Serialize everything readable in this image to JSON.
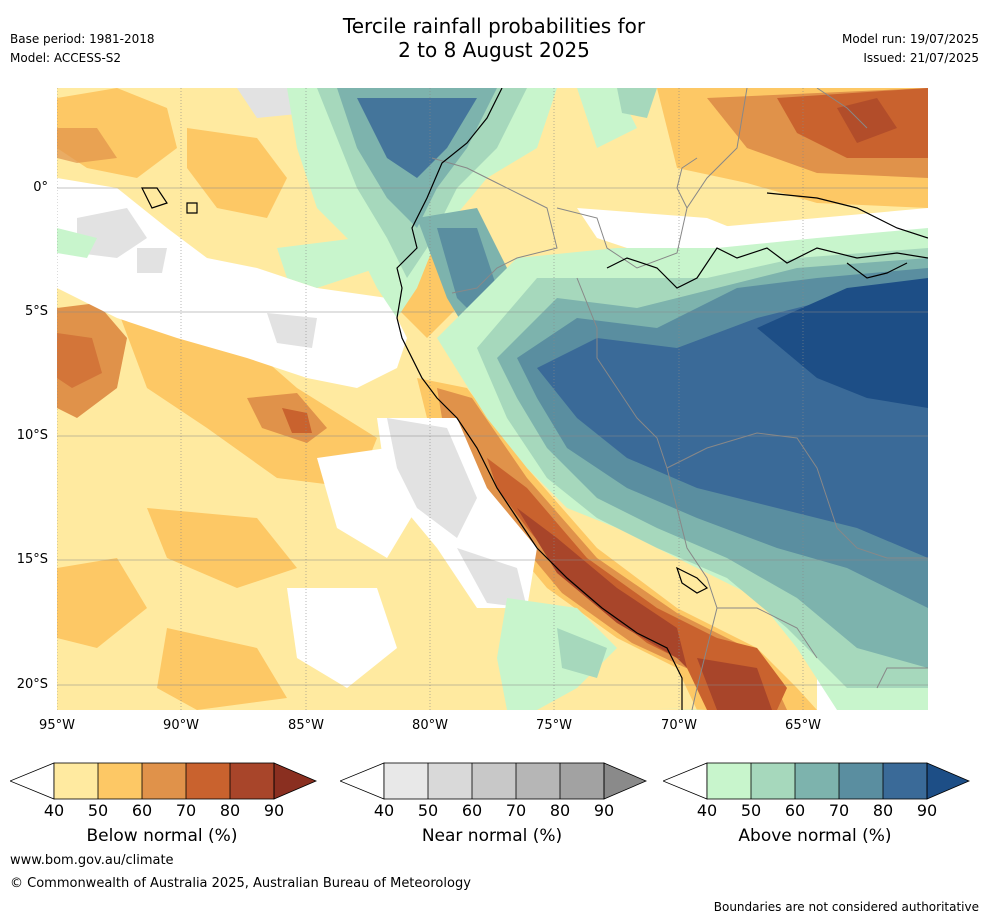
{
  "header": {
    "title_line1": "Tercile rainfall probabilities for",
    "title_line2": "2 to 8 August 2025",
    "base_period": "Base period: 1981-2018",
    "model": "Model: ACCESS-S2",
    "model_run": "Model run: 19/07/2025",
    "issued": "Issued: 21/07/2025"
  },
  "map": {
    "lat_labels": [
      "0°",
      "5°S",
      "10°S",
      "15°S",
      "20°S"
    ],
    "lon_labels": [
      "95°W",
      "90°W",
      "85°W",
      "80°W",
      "75°W",
      "70°W",
      "65°W"
    ]
  },
  "legends": [
    {
      "title": "Below normal (%)",
      "ticks": [
        "40",
        "50",
        "60",
        "70",
        "80",
        "90"
      ],
      "colors": [
        "#ffeaa0",
        "#fdc865",
        "#e0924a",
        "#c9622e",
        "#a8452a",
        "#8a2f20"
      ]
    },
    {
      "title": "Near normal (%)",
      "ticks": [
        "40",
        "50",
        "60",
        "70",
        "80",
        "90"
      ],
      "colors": [
        "#e8e8e8",
        "#d9d9d9",
        "#c8c8c8",
        "#b6b6b6",
        "#a2a2a2",
        "#8a8a8a"
      ]
    },
    {
      "title": "Above normal (%)",
      "ticks": [
        "40",
        "50",
        "60",
        "70",
        "80",
        "90"
      ],
      "colors": [
        "#c8f5cc",
        "#a6d8bc",
        "#7db3ad",
        "#5a8ea0",
        "#3a6a98",
        "#1d4e86"
      ]
    }
  ],
  "footer": {
    "website": "www.bom.gov.au/climate",
    "copyright": "© Commonwealth of Australia 2025, Australian Bureau of Meteorology",
    "disclaimer": "Boundaries are not considered authoritative"
  }
}
